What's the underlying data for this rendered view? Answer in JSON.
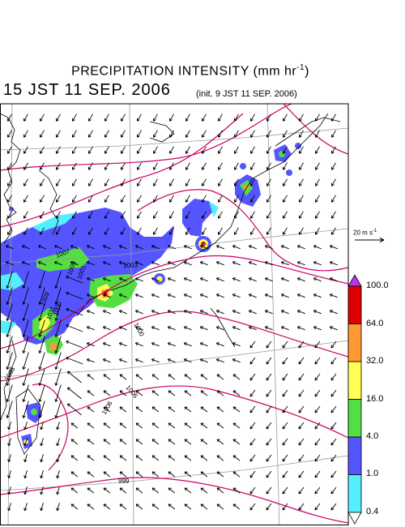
{
  "header": {
    "title": "PRECIPITATION INTENSITY (mm hr",
    "title_exp": "-1",
    "title_close": ")",
    "valid_time": "15 JST 11 SEP. 2006",
    "init_time": "(init. 9 JST 11 SEP. 2006)"
  },
  "wind_scale": {
    "label": "20 m s",
    "exp": "-1"
  },
  "colorbar": {
    "labels": [
      "100.0",
      "64.0",
      "32.0",
      "16.0",
      "4.0",
      "1.0",
      "0.4"
    ],
    "colors": [
      "#e00000",
      "#ff9933",
      "#ffff55",
      "#55dd44",
      "#5555ff",
      "#55eeff"
    ],
    "top_arrow_color": "#bb33ee",
    "bottom_arrow_color": "#ffffff"
  },
  "map": {
    "precip_colors": {
      "cyan": "#55eeff",
      "blue": "#5555ff",
      "green": "#55dd44",
      "yellow": "#ffff55",
      "orange": "#ff9933",
      "red": "#e00000"
    },
    "isobar_color": "#cc0066",
    "isobar_labels": [
      "1007",
      "1005",
      "1003",
      "1001",
      "1000",
      "1000",
      "1003",
      "1006",
      "1006",
      "999",
      "1009",
      "1011"
    ]
  }
}
